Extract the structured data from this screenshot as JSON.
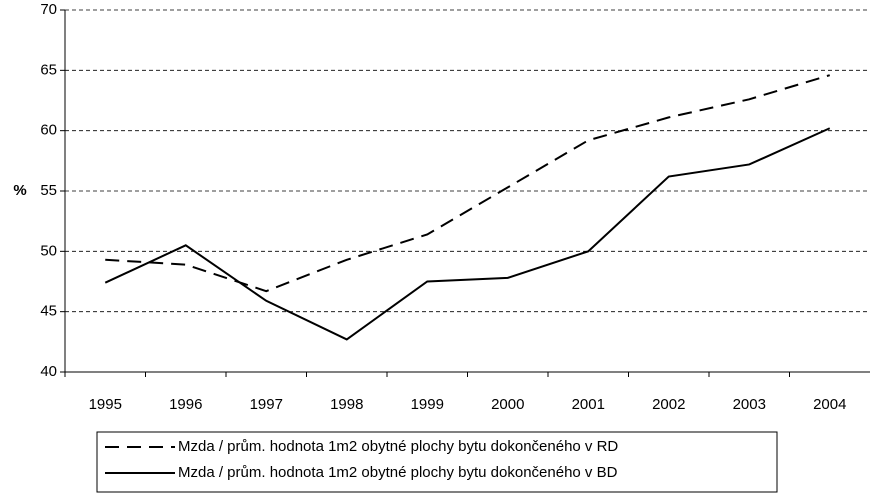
{
  "chart_data": {
    "type": "line",
    "y_label": "%",
    "categories": [
      "1995",
      "1996",
      "1997",
      "1998",
      "1999",
      "2000",
      "2001",
      "2002",
      "2003",
      "2004"
    ],
    "series": [
      {
        "name": "Mzda / prům. hodnota 1m2 obytné plochy bytu dokončeného v RD",
        "color": "#000000",
        "style": "dashed",
        "values": [
          49.3,
          48.9,
          46.7,
          49.3,
          51.4,
          55.3,
          59.2,
          61.1,
          62.6,
          64.6
        ]
      },
      {
        "name": "Mzda / prům. hodnota 1m2 obytné plochy bytu dokončeného v BD",
        "color": "#000000",
        "style": "solid",
        "values": [
          47.4,
          50.5,
          45.9,
          42.7,
          47.5,
          47.8,
          50.0,
          56.2,
          57.2,
          60.2
        ]
      }
    ],
    "ylim": [
      40,
      70
    ],
    "yticks": [
      40,
      45,
      50,
      55,
      60,
      65,
      70
    ],
    "grid": true,
    "legend": "bottom"
  }
}
